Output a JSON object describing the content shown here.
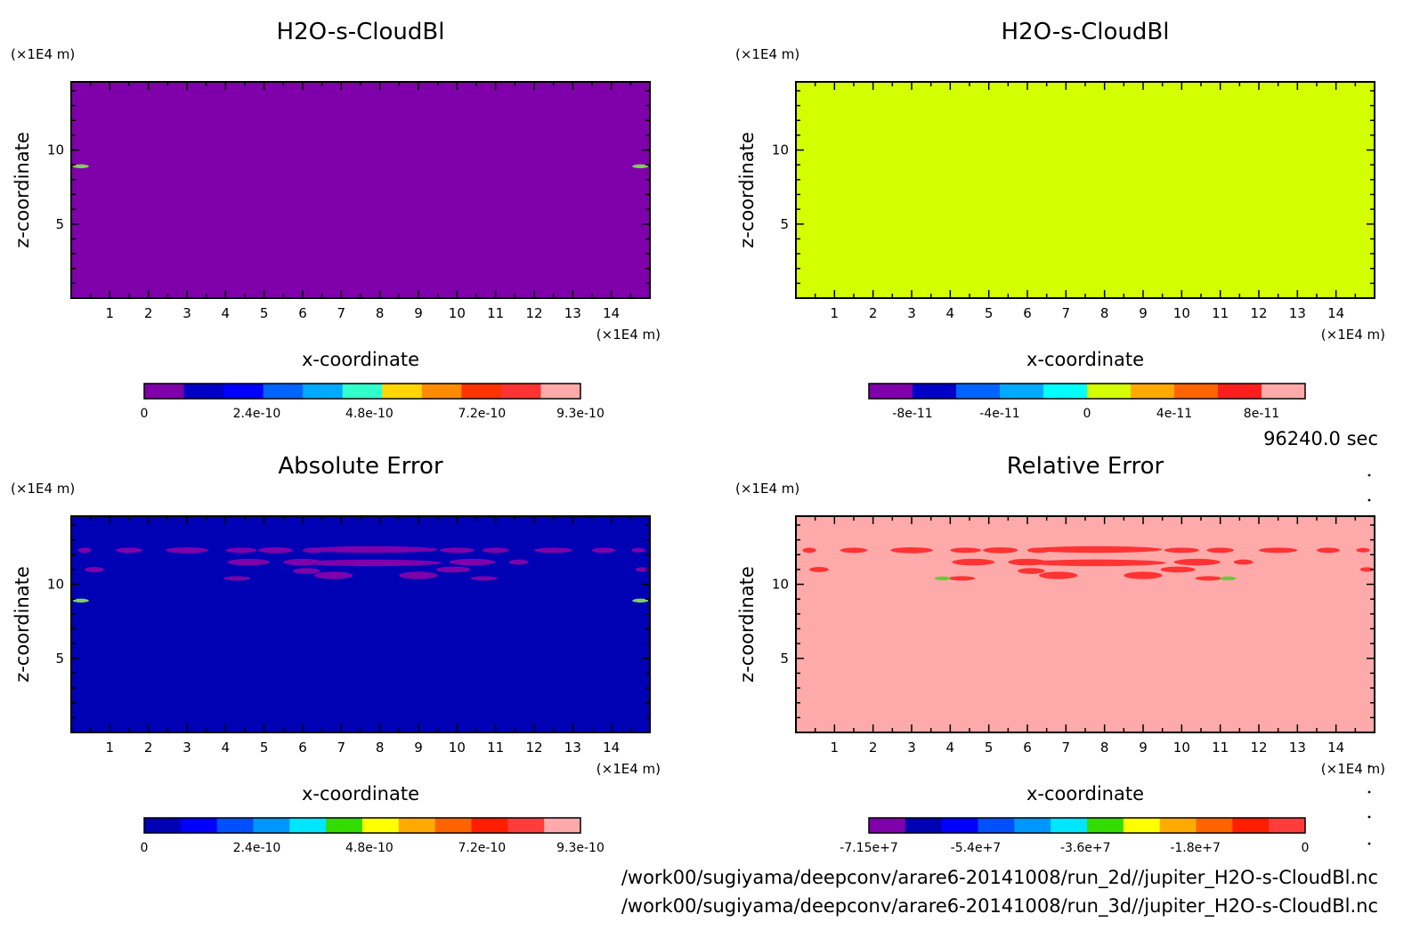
{
  "chart_data": [
    {
      "type": "heatmap",
      "title": "H2O-s-CloudBl",
      "xlabel": "x-coordinate",
      "ylabel": "z-coordinate",
      "x_unit": "(×1E4 m)",
      "y_unit": "(×1E4 m)",
      "xlim": [
        0,
        15
      ],
      "ylim": [
        0,
        14.6
      ],
      "x_ticks": [
        "1",
        "2",
        "3",
        "4",
        "5",
        "6",
        "7",
        "8",
        "9",
        "10",
        "11",
        "12",
        "13",
        "14"
      ],
      "y_ticks": [
        "5",
        "10"
      ],
      "field_color": "#7f00aa",
      "features": [
        {
          "x": 0.25,
          "z": 8.9,
          "color": "#7fcf5c"
        },
        {
          "x": 14.75,
          "z": 8.9,
          "color": "#7fcf5c"
        }
      ],
      "colorbar": {
        "colors": [
          "#7f00aa",
          "#0000c8",
          "#0000ff",
          "#0064ff",
          "#00aaff",
          "#33ffcc",
          "#ffd700",
          "#ff8c00",
          "#ff3200",
          "#ff3333",
          "#ffaaaa"
        ],
        "labels": [
          "0",
          "2.4e-10",
          "4.8e-10",
          "7.2e-10",
          "9.3e-10"
        ],
        "min": 0,
        "max": 9.3e-10
      }
    },
    {
      "type": "heatmap",
      "title": "H2O-s-CloudBl",
      "xlabel": "x-coordinate",
      "ylabel": "z-coordinate",
      "x_unit": "(×1E4 m)",
      "y_unit": "(×1E4 m)",
      "xlim": [
        0,
        15
      ],
      "ylim": [
        0,
        14.6
      ],
      "x_ticks": [
        "1",
        "2",
        "3",
        "4",
        "5",
        "6",
        "7",
        "8",
        "9",
        "10",
        "11",
        "12",
        "13",
        "14"
      ],
      "y_ticks": [
        "5",
        "10"
      ],
      "field_color": "#d4ff00",
      "features": [],
      "colorbar": {
        "colors": [
          "#7f00aa",
          "#0000c8",
          "#0064ff",
          "#00aaff",
          "#00ffff",
          "#d4ff00",
          "#ffaa00",
          "#ff6400",
          "#ff1e1e",
          "#ffaaaa"
        ],
        "labels": [
          "-8e-11",
          "-4e-11",
          "0",
          "4e-11",
          "8e-11"
        ],
        "min": -1e-10,
        "max": 1e-10
      }
    },
    {
      "type": "heatmap",
      "title": "Absolute Error",
      "xlabel": "x-coordinate",
      "ylabel": "z-coordinate",
      "x_unit": "(×1E4 m)",
      "y_unit": "(×1E4 m)",
      "xlim": [
        0,
        15
      ],
      "ylim": [
        0,
        14.6
      ],
      "x_ticks": [
        "1",
        "2",
        "3",
        "4",
        "5",
        "6",
        "7",
        "8",
        "9",
        "10",
        "11",
        "12",
        "13",
        "14"
      ],
      "y_ticks": [
        "5",
        "10"
      ],
      "field_color": "#0000b4",
      "blob_color": "#7f00aa",
      "features": [
        {
          "x": 0.25,
          "z": 8.9,
          "color": "#7fcf5c"
        },
        {
          "x": 14.75,
          "z": 8.9,
          "color": "#7fcf5c"
        }
      ],
      "colorbar": {
        "colors": [
          "#0000b4",
          "#0000ff",
          "#0050ff",
          "#0096ff",
          "#00e6ff",
          "#32dc00",
          "#ffff00",
          "#ffaa00",
          "#ff6400",
          "#ff1e00",
          "#ff3c3c",
          "#ffaaaa"
        ],
        "labels": [
          "0",
          "2.4e-10",
          "4.8e-10",
          "7.2e-10",
          "9.3e-10"
        ],
        "min": 0,
        "max": 9.3e-10
      }
    },
    {
      "type": "heatmap",
      "title": "Relative Error",
      "xlabel": "x-coordinate",
      "ylabel": "z-coordinate",
      "x_unit": "(×1E4 m)",
      "y_unit": "(×1E4 m)",
      "xlim": [
        0,
        15
      ],
      "ylim": [
        0,
        14.6
      ],
      "x_ticks": [
        "1",
        "2",
        "3",
        "4",
        "5",
        "6",
        "7",
        "8",
        "9",
        "10",
        "11",
        "12",
        "13",
        "14"
      ],
      "y_ticks": [
        "5",
        "10"
      ],
      "field_color": "#ffaaaa",
      "blob_color": "#ff3333",
      "features": [
        {
          "x": 3.8,
          "z": 10.4,
          "color": "#66cc33"
        },
        {
          "x": 11.2,
          "z": 10.4,
          "color": "#66cc33"
        }
      ],
      "colorbar": {
        "colors": [
          "#7f00aa",
          "#0000b4",
          "#0000ff",
          "#0050ff",
          "#0096ff",
          "#00e6ff",
          "#32dc00",
          "#ffff00",
          "#ffaa00",
          "#ff6400",
          "#ff1e00",
          "#ff3c3c"
        ],
        "labels": [
          "-7.15e+7",
          "-5.4e+7",
          "-3.6e+7",
          "-1.8e+7",
          "0"
        ],
        "min": -71500000.0,
        "max": 0
      }
    }
  ],
  "error_blobs": [
    {
      "x": 0.35,
      "z": 12.3,
      "w": 0.35,
      "h": 0.35
    },
    {
      "x": 1.5,
      "z": 12.3,
      "w": 0.7,
      "h": 0.35
    },
    {
      "x": 3.0,
      "z": 12.3,
      "w": 1.1,
      "h": 0.4
    },
    {
      "x": 4.4,
      "z": 12.3,
      "w": 0.8,
      "h": 0.35
    },
    {
      "x": 5.3,
      "z": 12.3,
      "w": 0.9,
      "h": 0.4
    },
    {
      "x": 6.3,
      "z": 12.3,
      "w": 0.6,
      "h": 0.35
    },
    {
      "x": 7.8,
      "z": 12.35,
      "w": 3.4,
      "h": 0.45
    },
    {
      "x": 10.0,
      "z": 12.3,
      "w": 0.9,
      "h": 0.35
    },
    {
      "x": 11.0,
      "z": 12.3,
      "w": 0.7,
      "h": 0.35
    },
    {
      "x": 12.5,
      "z": 12.3,
      "w": 1.0,
      "h": 0.35
    },
    {
      "x": 13.8,
      "z": 12.3,
      "w": 0.6,
      "h": 0.35
    },
    {
      "x": 14.7,
      "z": 12.3,
      "w": 0.35,
      "h": 0.3
    },
    {
      "x": 4.6,
      "z": 11.5,
      "w": 1.1,
      "h": 0.45
    },
    {
      "x": 6.0,
      "z": 11.5,
      "w": 1.0,
      "h": 0.45
    },
    {
      "x": 7.8,
      "z": 11.45,
      "w": 3.6,
      "h": 0.45
    },
    {
      "x": 10.4,
      "z": 11.5,
      "w": 1.2,
      "h": 0.45
    },
    {
      "x": 11.6,
      "z": 11.5,
      "w": 0.5,
      "h": 0.35
    },
    {
      "x": 0.6,
      "z": 11.0,
      "w": 0.5,
      "h": 0.35
    },
    {
      "x": 6.1,
      "z": 10.9,
      "w": 0.7,
      "h": 0.4
    },
    {
      "x": 6.8,
      "z": 10.6,
      "w": 1.0,
      "h": 0.5
    },
    {
      "x": 9.0,
      "z": 10.6,
      "w": 1.0,
      "h": 0.5
    },
    {
      "x": 9.9,
      "z": 11.0,
      "w": 0.9,
      "h": 0.4
    },
    {
      "x": 14.8,
      "z": 11.0,
      "w": 0.35,
      "h": 0.3
    },
    {
      "x": 4.3,
      "z": 10.4,
      "w": 0.7,
      "h": 0.3
    },
    {
      "x": 10.7,
      "z": 10.4,
      "w": 0.7,
      "h": 0.3
    }
  ],
  "time_label": "96240.0 sec",
  "file_paths": [
    "/work00/sugiyama/deepconv/arare6-20141008/run_2d//jupiter_H2O-s-CloudBl.nc",
    "/work00/sugiyama/deepconv/arare6-20141008/run_3d//jupiter_H2O-s-CloudBl.nc"
  ]
}
